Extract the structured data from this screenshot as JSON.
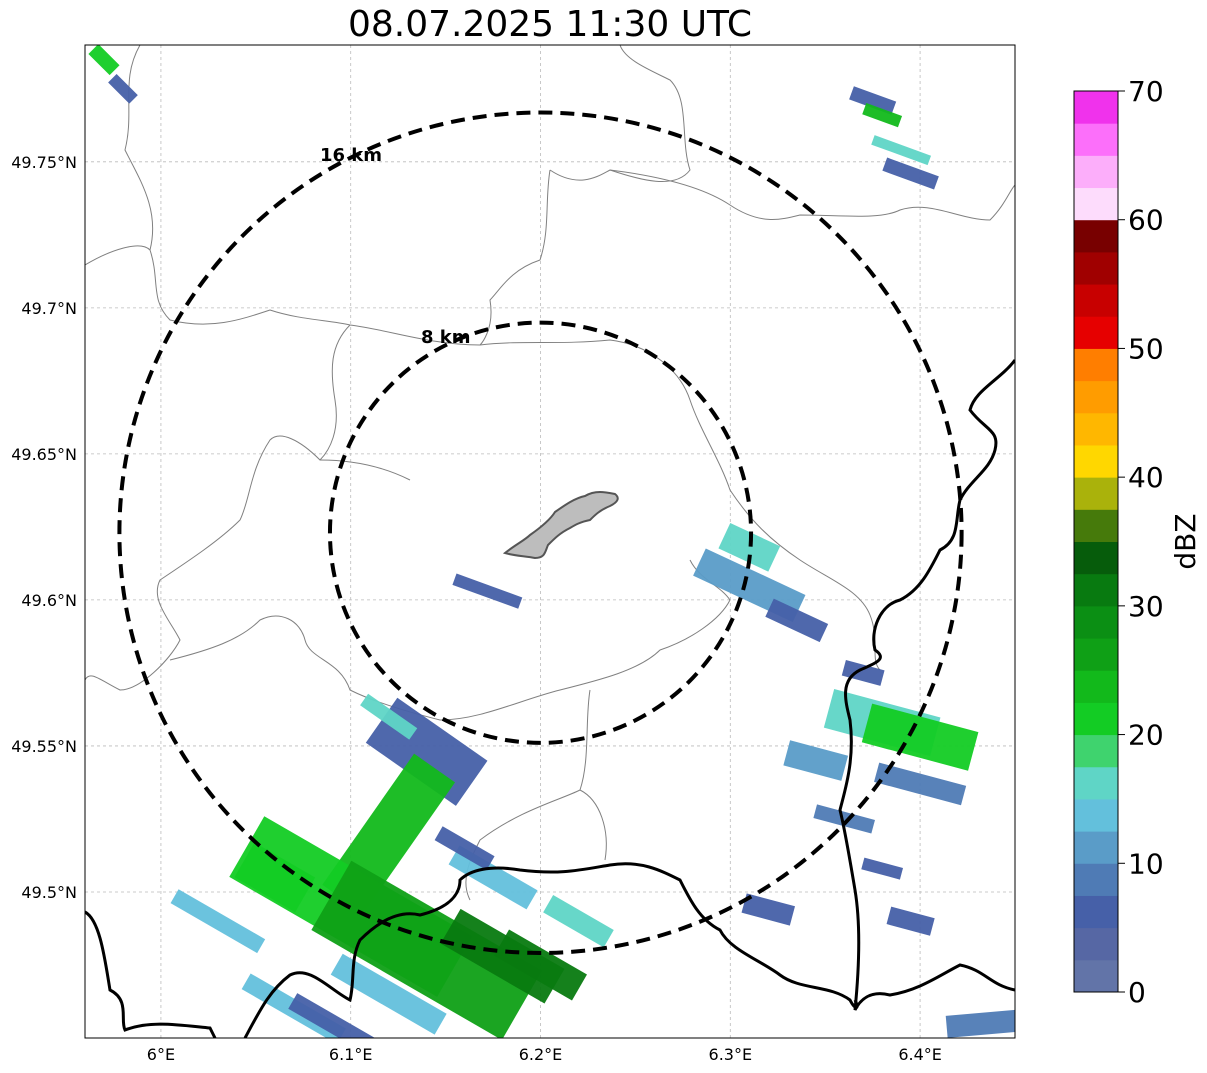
{
  "title": "08.07.2025 11:30 UTC",
  "map": {
    "lon_range": [
      5.96,
      6.45
    ],
    "lat_range": [
      49.45,
      49.79
    ],
    "x_ticks": [
      {
        "value": 6.0,
        "label": "6°E"
      },
      {
        "value": 6.1,
        "label": "6.1°E"
      },
      {
        "value": 6.2,
        "label": "6.2°E"
      },
      {
        "value": 6.3,
        "label": "6.3°E"
      },
      {
        "value": 6.4,
        "label": "6.4°E"
      }
    ],
    "y_ticks": [
      {
        "value": 49.75,
        "label": "49.75°N"
      },
      {
        "value": 49.7,
        "label": "49.7°N"
      },
      {
        "value": 49.65,
        "label": "49.65°N"
      },
      {
        "value": 49.6,
        "label": "49.6°N"
      },
      {
        "value": 49.55,
        "label": "49.55°N"
      },
      {
        "value": 49.5,
        "label": "49.5°N"
      }
    ],
    "gridlines": true,
    "radar_center": {
      "lon": 6.2,
      "lat": 49.623
    },
    "range_rings": [
      {
        "label": "8 km",
        "km": 8
      },
      {
        "label": "16 km",
        "km": 16
      }
    ],
    "city_color": "#bdbdbd",
    "border_color": "#000000",
    "region_line_color": "#808080"
  },
  "colorbar": {
    "label": "dBZ",
    "min": 0,
    "max": 70,
    "step": 2.5,
    "ticks": [
      {
        "value": 0,
        "label": "0"
      },
      {
        "value": 10,
        "label": "10"
      },
      {
        "value": 20,
        "label": "20"
      },
      {
        "value": 30,
        "label": "30"
      },
      {
        "value": 40,
        "label": "40"
      },
      {
        "value": 50,
        "label": "50"
      },
      {
        "value": 60,
        "label": "60"
      },
      {
        "value": 70,
        "label": "70"
      }
    ],
    "colors": [
      "#6274a8",
      "#5667a4",
      "#4660a8",
      "#4f7bb5",
      "#5a9cc8",
      "#63c0dc",
      "#5fd5c6",
      "#3fd36e",
      "#13cc24",
      "#12b91b",
      "#0fa016",
      "#0b8f14",
      "#087a10",
      "#065c0b",
      "#467a0b",
      "#aab20b",
      "#ffd700",
      "#ffb700",
      "#ff9c00",
      "#ff7e00",
      "#e60000",
      "#c80000",
      "#a00000",
      "#780000",
      "#fddcfc",
      "#fcaefa",
      "#fc6ffa",
      "#f032ec"
    ]
  },
  "echoes": [
    {
      "lon": 5.97,
      "lat": 49.785,
      "dbz": 22,
      "w": 30,
      "h": 14,
      "rot": 45
    },
    {
      "lon": 5.98,
      "lat": 49.775,
      "dbz": 7,
      "w": 30,
      "h": 12,
      "rot": 45
    },
    {
      "lon": 6.375,
      "lat": 49.771,
      "dbz": 6,
      "w": 45,
      "h": 14,
      "rot": 20
    },
    {
      "lon": 6.38,
      "lat": 49.766,
      "dbz": 24,
      "w": 38,
      "h": 12,
      "rot": 20
    },
    {
      "lon": 6.39,
      "lat": 49.754,
      "dbz": 16,
      "w": 60,
      "h": 10,
      "rot": 20
    },
    {
      "lon": 6.395,
      "lat": 49.746,
      "dbz": 7,
      "w": 55,
      "h": 14,
      "rot": 20
    },
    {
      "lon": 6.172,
      "lat": 49.603,
      "dbz": 6,
      "w": 70,
      "h": 12,
      "rot": 20
    },
    {
      "lon": 6.31,
      "lat": 49.618,
      "dbz": 16,
      "w": 55,
      "h": 28,
      "rot": 25
    },
    {
      "lon": 6.31,
      "lat": 49.605,
      "dbz": 12,
      "w": 110,
      "h": 30,
      "rot": 25
    },
    {
      "lon": 6.335,
      "lat": 49.593,
      "dbz": 6,
      "w": 60,
      "h": 20,
      "rot": 25
    },
    {
      "lon": 6.14,
      "lat": 49.548,
      "dbz": 5,
      "w": 110,
      "h": 55,
      "rot": 35
    },
    {
      "lon": 6.12,
      "lat": 49.56,
      "dbz": 16,
      "w": 60,
      "h": 14,
      "rot": 35
    },
    {
      "lon": 6.12,
      "lat": 49.52,
      "dbz": 23,
      "w": 160,
      "h": 50,
      "rot": -55
    },
    {
      "lon": 6.1,
      "lat": 49.495,
      "dbz": 22,
      "w": 240,
      "h": 70,
      "rot": 30
    },
    {
      "lon": 6.14,
      "lat": 49.48,
      "dbz": 25,
      "w": 220,
      "h": 80,
      "rot": 30
    },
    {
      "lon": 6.18,
      "lat": 49.478,
      "dbz": 32,
      "w": 120,
      "h": 40,
      "rot": 30
    },
    {
      "lon": 6.2,
      "lat": 49.475,
      "dbz": 30,
      "w": 90,
      "h": 30,
      "rot": 30
    },
    {
      "lon": 6.12,
      "lat": 49.465,
      "dbz": 13,
      "w": 120,
      "h": 24,
      "rot": 30
    },
    {
      "lon": 6.03,
      "lat": 49.49,
      "dbz": 13,
      "w": 100,
      "h": 16,
      "rot": 30
    },
    {
      "lon": 6.06,
      "lat": 49.505,
      "dbz": 22,
      "w": 70,
      "h": 40,
      "rot": 30
    },
    {
      "lon": 6.07,
      "lat": 49.46,
      "dbz": 13,
      "w": 110,
      "h": 18,
      "rot": 30
    },
    {
      "lon": 6.09,
      "lat": 49.455,
      "dbz": 6,
      "w": 90,
      "h": 18,
      "rot": 30
    },
    {
      "lon": 6.175,
      "lat": 49.505,
      "dbz": 14,
      "w": 90,
      "h": 22,
      "rot": 30
    },
    {
      "lon": 6.22,
      "lat": 49.49,
      "dbz": 16,
      "w": 70,
      "h": 20,
      "rot": 30
    },
    {
      "lon": 6.16,
      "lat": 49.515,
      "dbz": 6,
      "w": 60,
      "h": 16,
      "rot": 30
    },
    {
      "lon": 6.38,
      "lat": 49.558,
      "dbz": 16,
      "w": 110,
      "h": 40,
      "rot": 15
    },
    {
      "lon": 6.4,
      "lat": 49.553,
      "dbz": 22,
      "w": 110,
      "h": 40,
      "rot": 15
    },
    {
      "lon": 6.37,
      "lat": 49.575,
      "dbz": 6,
      "w": 40,
      "h": 16,
      "rot": 15
    },
    {
      "lon": 6.345,
      "lat": 49.545,
      "dbz": 12,
      "w": 60,
      "h": 26,
      "rot": 15
    },
    {
      "lon": 6.4,
      "lat": 49.537,
      "dbz": 8,
      "w": 90,
      "h": 20,
      "rot": 15
    },
    {
      "lon": 6.36,
      "lat": 49.525,
      "dbz": 9,
      "w": 60,
      "h": 14,
      "rot": 15
    },
    {
      "lon": 6.38,
      "lat": 49.508,
      "dbz": 6,
      "w": 40,
      "h": 12,
      "rot": 15
    },
    {
      "lon": 6.395,
      "lat": 49.49,
      "dbz": 6,
      "w": 45,
      "h": 18,
      "rot": 15
    },
    {
      "lon": 6.32,
      "lat": 49.494,
      "dbz": 6,
      "w": 50,
      "h": 20,
      "rot": 15
    },
    {
      "lon": 6.435,
      "lat": 49.455,
      "dbz": 9,
      "w": 80,
      "h": 22,
      "rot": -5
    }
  ]
}
